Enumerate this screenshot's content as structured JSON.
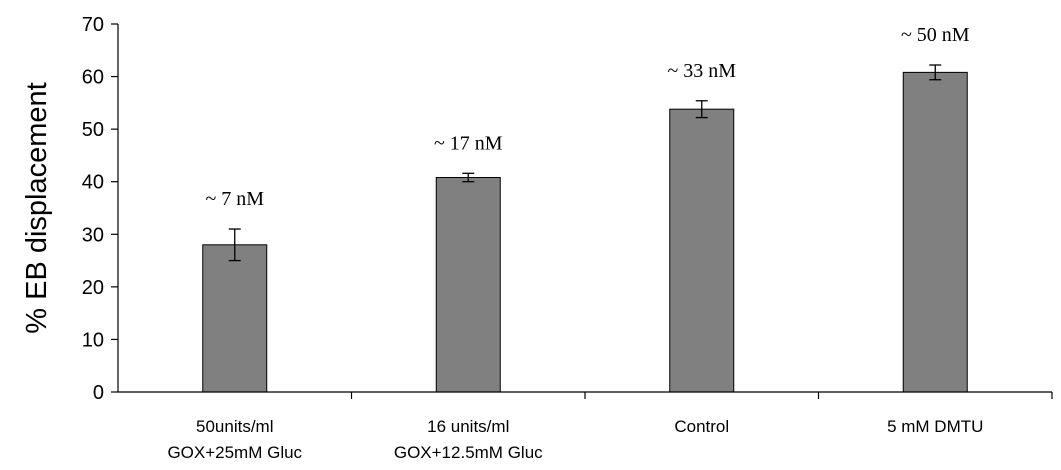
{
  "chart_data": {
    "type": "bar",
    "ylabel": "% EB displacement",
    "xlabel": "",
    "ylim": [
      0,
      70
    ],
    "yticks": [
      0,
      10,
      20,
      30,
      40,
      50,
      60,
      70
    ],
    "grid": false,
    "legend": "none",
    "categories": [
      [
        "50units/ml",
        "GOX+25mM Gluc"
      ],
      [
        "16 units/ml",
        "GOX+12.5mM Gluc"
      ],
      [
        "Control"
      ],
      [
        "5 mM DMTU"
      ]
    ],
    "values": [
      28,
      40.8,
      53.8,
      60.8
    ],
    "errors": [
      3,
      0.8,
      1.6,
      1.4
    ],
    "data_labels": [
      "~ 7 nM",
      "~ 17 nM",
      "~ 33 nM",
      "~ 50 nM"
    ],
    "colors": {
      "bar": "#808080",
      "bar_stroke": "#000000",
      "axis": "#000000"
    }
  }
}
